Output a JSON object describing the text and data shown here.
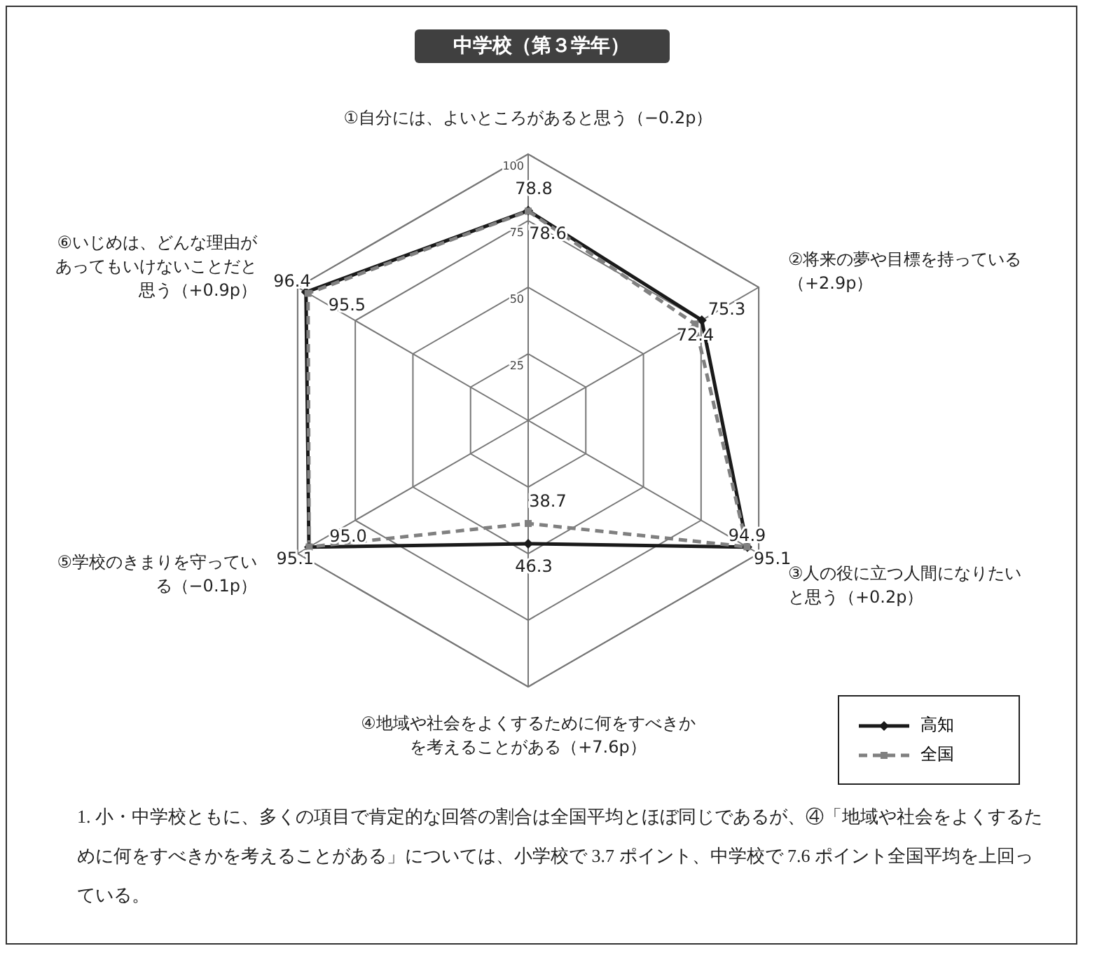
{
  "chart_data": {
    "type": "radar",
    "title": "中学校（第３学年）",
    "categories": [
      "①自分には、よいところがあると思う（−0.2p）",
      "②将来の夢や目標を持っている（+2.9p）",
      "③人の役に立つ人間になりたいと思う（+0.2p）",
      "④地域や社会をよくするために何をすべきかを考えることがある（+7.6p）",
      "⑤学校のきまりを守っている（−0.1p）",
      "⑥いじめは、どんな理由があってもいけないことだと思う（+0.9p）"
    ],
    "series": [
      {
        "name": "高知",
        "color": "#1a1a1a",
        "values": [
          78.8,
          75.3,
          95.1,
          46.3,
          95.1,
          96.4
        ],
        "value_labels": [
          "78.8",
          "75.3",
          "95.1",
          "46.3",
          "95.1",
          "96.4"
        ],
        "marker": "diamond",
        "line_style": "solid"
      },
      {
        "name": "全国",
        "color": "#808080",
        "values": [
          78.6,
          72.4,
          94.9,
          38.7,
          95.0,
          95.5
        ],
        "value_labels": [
          "78.6",
          "72.4",
          "94.9",
          "38.7",
          "95.0",
          "95.5"
        ],
        "marker": "square",
        "line_style": "dashed"
      }
    ],
    "ylim": [
      0,
      100
    ],
    "yticks": [
      25,
      50,
      75,
      100
    ],
    "grid": true,
    "legend": "bottom right",
    "annotations": [
      "1. 小・中学校ともに、多くの項目で肯定的な回答の割合は全国平均とほぼ同じであるが、④「地域や社会をよくするために何をすべきかを考えることがある」については、小学校で 3.7 ポイント、中学校で 7.6 ポイント全国平均を上回っている。"
    ]
  }
}
